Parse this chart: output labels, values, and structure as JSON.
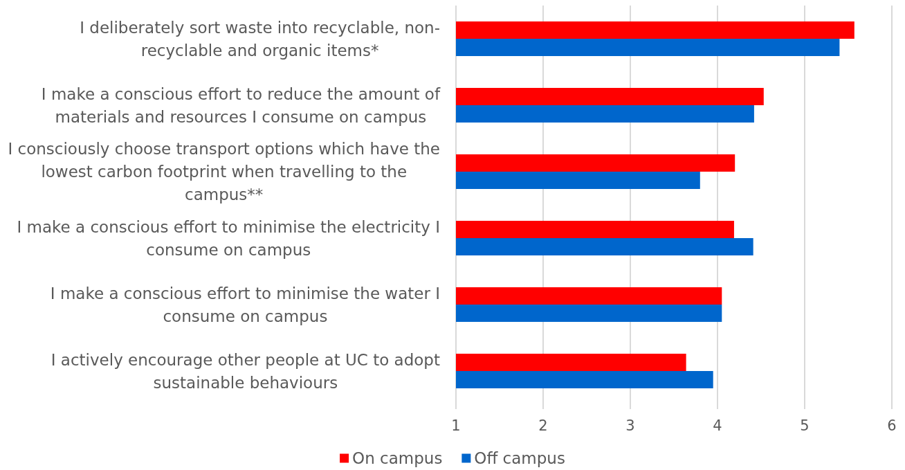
{
  "chart_data": {
    "type": "bar",
    "orientation": "horizontal",
    "categories": [
      "I deliberately sort waste into recyclable, non-recyclable and organic items*",
      "I make a conscious effort to reduce the amount of materials and resources I consume on campus",
      "I consciously choose transport options which have the lowest carbon footprint when travelling to the campus**",
      "I make a conscious effort to minimise the electricity I consume on campus",
      "I make a conscious effort to minimise the water I consume on campus",
      "I actively encourage other people at UC to adopt sustainable behaviours"
    ],
    "series": [
      {
        "name": "On campus",
        "color": "#ff0000",
        "values": [
          5.57,
          4.53,
          4.2,
          4.19,
          4.05,
          3.64
        ]
      },
      {
        "name": "Off campus",
        "color": "#0066cc",
        "values": [
          5.4,
          4.42,
          3.8,
          4.41,
          4.05,
          3.95
        ]
      }
    ],
    "xlim": [
      1,
      6
    ],
    "xticks": [
      1,
      2,
      3,
      4,
      5,
      6
    ],
    "grid": "x",
    "legend": "bottom"
  }
}
